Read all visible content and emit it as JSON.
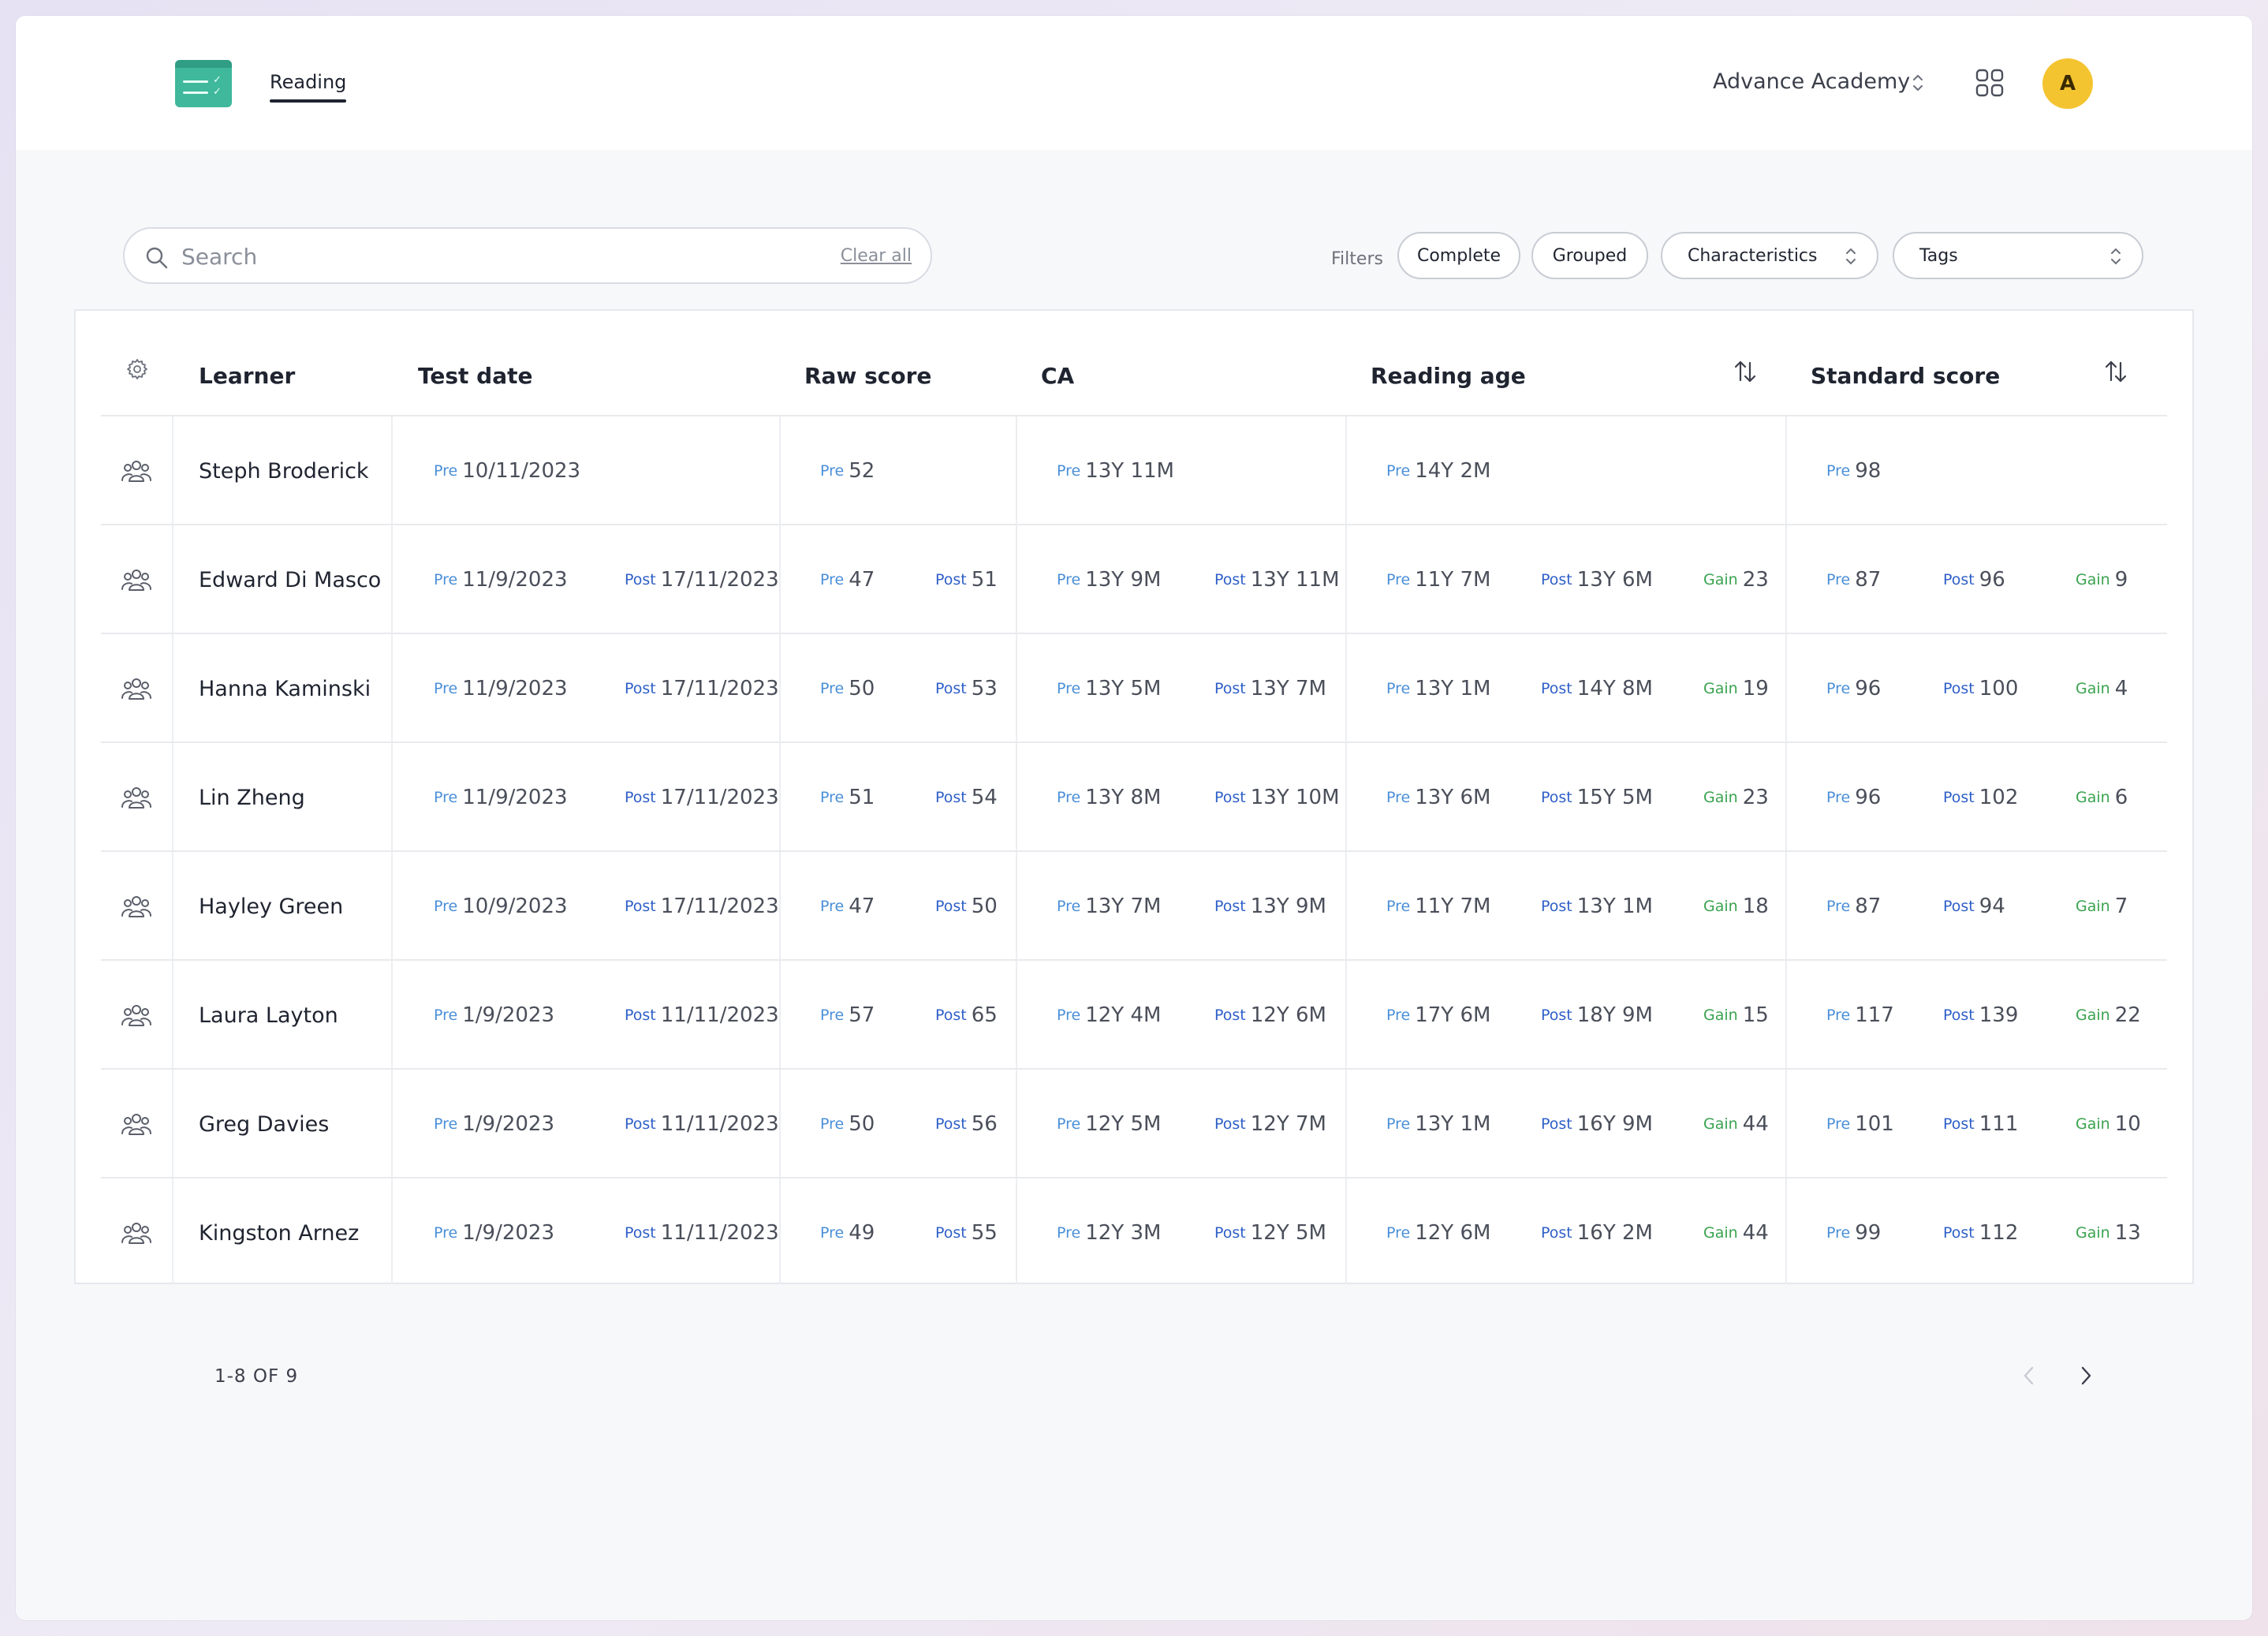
{
  "header": {
    "nav_tab": "Reading",
    "org_name": "Advance Academy",
    "avatar_initial": "A",
    "accent": "#3fb89b",
    "avatar_color": "#f4c430"
  },
  "search": {
    "placeholder": "Search",
    "clear_label": "Clear all"
  },
  "filters": {
    "label": "Filters",
    "complete": "Complete",
    "grouped": "Grouped",
    "characteristics": "Characteristics",
    "tags": "Tags"
  },
  "table": {
    "columns": {
      "learner": "Learner",
      "test_date": "Test date",
      "raw_score": "Raw score",
      "ca": "CA",
      "reading_age": "Reading age",
      "standard_score": "Standard score"
    },
    "tags": {
      "pre": "Pre",
      "post": "Post",
      "gain": "Gain"
    },
    "rows": [
      {
        "name": "Steph Broderick",
        "date_pre": "10/11/2023",
        "date_post": "",
        "raw_pre": "52",
        "raw_post": "",
        "ca_pre": "13Y 11M",
        "ca_post": "",
        "ra_pre": "14Y 2M",
        "ra_post": "",
        "ra_gain": "",
        "ss_pre": "98",
        "ss_post": "",
        "ss_gain": ""
      },
      {
        "name": "Edward Di Masco",
        "date_pre": "11/9/2023",
        "date_post": "17/11/2023",
        "raw_pre": "47",
        "raw_post": "51",
        "ca_pre": "13Y 9M",
        "ca_post": "13Y 11M",
        "ra_pre": "11Y 7M",
        "ra_post": "13Y 6M",
        "ra_gain": "23",
        "ss_pre": "87",
        "ss_post": "96",
        "ss_gain": "9"
      },
      {
        "name": "Hanna Kaminski",
        "date_pre": "11/9/2023",
        "date_post": "17/11/2023",
        "raw_pre": "50",
        "raw_post": "53",
        "ca_pre": "13Y 5M",
        "ca_post": "13Y 7M",
        "ra_pre": "13Y 1M",
        "ra_post": "14Y 8M",
        "ra_gain": "19",
        "ss_pre": "96",
        "ss_post": "100",
        "ss_gain": "4"
      },
      {
        "name": "Lin Zheng",
        "date_pre": "11/9/2023",
        "date_post": "17/11/2023",
        "raw_pre": "51",
        "raw_post": "54",
        "ca_pre": "13Y 8M",
        "ca_post": "13Y 10M",
        "ra_pre": "13Y 6M",
        "ra_post": "15Y 5M",
        "ra_gain": "23",
        "ss_pre": "96",
        "ss_post": "102",
        "ss_gain": "6"
      },
      {
        "name": "Hayley Green",
        "date_pre": "10/9/2023",
        "date_post": "17/11/2023",
        "raw_pre": "47",
        "raw_post": "50",
        "ca_pre": "13Y 7M",
        "ca_post": "13Y 9M",
        "ra_pre": "11Y 7M",
        "ra_post": "13Y 1M",
        "ra_gain": "18",
        "ss_pre": "87",
        "ss_post": "94",
        "ss_gain": "7"
      },
      {
        "name": "Laura Layton",
        "date_pre": "1/9/2023",
        "date_post": "11/11/2023",
        "raw_pre": "57",
        "raw_post": "65",
        "ca_pre": "12Y 4M",
        "ca_post": "12Y 6M",
        "ra_pre": "17Y 6M",
        "ra_post": "18Y 9M",
        "ra_gain": "15",
        "ss_pre": "117",
        "ss_post": "139",
        "ss_gain": "22"
      },
      {
        "name": "Greg Davies",
        "date_pre": "1/9/2023",
        "date_post": "11/11/2023",
        "raw_pre": "50",
        "raw_post": "56",
        "ca_pre": "12Y 5M",
        "ca_post": "12Y 7M",
        "ra_pre": "13Y 1M",
        "ra_post": "16Y 9M",
        "ra_gain": "44",
        "ss_pre": "101",
        "ss_post": "111",
        "ss_gain": "10"
      },
      {
        "name": "Kingston Arnez",
        "date_pre": "1/9/2023",
        "date_post": "11/11/2023",
        "raw_pre": "49",
        "raw_post": "55",
        "ca_pre": "12Y 3M",
        "ca_post": "12Y 5M",
        "ra_pre": "12Y 6M",
        "ra_post": "16Y 2M",
        "ra_gain": "44",
        "ss_pre": "99",
        "ss_post": "112",
        "ss_gain": "13"
      }
    ]
  },
  "pagination": {
    "range_text": "1-8 OF 9"
  }
}
